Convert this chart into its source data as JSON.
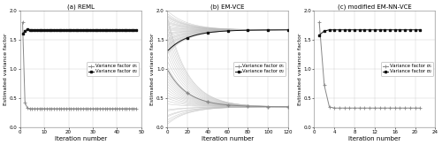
{
  "fig_width": 5.0,
  "fig_height": 1.64,
  "dpi": 100,
  "background_color": "#ffffff",
  "subplots": [
    {
      "title": "(a) REML",
      "xlabel": "Iteration number",
      "ylabel": "Estimated variance factor",
      "xlim": [
        0,
        50
      ],
      "ylim": [
        0,
        2
      ],
      "xticks": [
        0,
        10,
        20,
        30,
        40,
        50
      ],
      "yticks": [
        0,
        0.5,
        1.0,
        1.5,
        2.0
      ],
      "sigma1_x": [
        1,
        2,
        3,
        4,
        5,
        6,
        7,
        8,
        9,
        10,
        11,
        12,
        13,
        14,
        15,
        16,
        17,
        18,
        19,
        20,
        21,
        22,
        23,
        24,
        25,
        26,
        27,
        28,
        29,
        30,
        31,
        32,
        33,
        34,
        35,
        36,
        37,
        38,
        39,
        40,
        41,
        42,
        43,
        44,
        45,
        46,
        47,
        48
      ],
      "sigma1_y": [
        1.8,
        0.42,
        0.33,
        0.32,
        0.32,
        0.32,
        0.32,
        0.32,
        0.32,
        0.32,
        0.32,
        0.32,
        0.32,
        0.32,
        0.32,
        0.32,
        0.32,
        0.32,
        0.32,
        0.32,
        0.32,
        0.32,
        0.32,
        0.32,
        0.32,
        0.32,
        0.32,
        0.32,
        0.32,
        0.32,
        0.32,
        0.32,
        0.32,
        0.32,
        0.32,
        0.32,
        0.32,
        0.32,
        0.32,
        0.32,
        0.32,
        0.32,
        0.32,
        0.32,
        0.32,
        0.32,
        0.32,
        0.32
      ],
      "sigma2_x": [
        1,
        2,
        3,
        4,
        5,
        6,
        7,
        8,
        9,
        10,
        11,
        12,
        13,
        14,
        15,
        16,
        17,
        18,
        19,
        20,
        21,
        22,
        23,
        24,
        25,
        26,
        27,
        28,
        29,
        30,
        31,
        32,
        33,
        34,
        35,
        36,
        37,
        38,
        39,
        40,
        41,
        42,
        43,
        44,
        45,
        46,
        47,
        48
      ],
      "sigma2_y": [
        1.6,
        1.65,
        1.68,
        1.67,
        1.67,
        1.67,
        1.67,
        1.67,
        1.67,
        1.67,
        1.67,
        1.67,
        1.67,
        1.67,
        1.67,
        1.67,
        1.67,
        1.67,
        1.67,
        1.67,
        1.67,
        1.67,
        1.67,
        1.67,
        1.67,
        1.67,
        1.67,
        1.67,
        1.67,
        1.67,
        1.67,
        1.67,
        1.67,
        1.67,
        1.67,
        1.67,
        1.67,
        1.67,
        1.67,
        1.67,
        1.67,
        1.67,
        1.67,
        1.67,
        1.67,
        1.67,
        1.67,
        1.67
      ],
      "legend_label1": "Variance factor σ₁",
      "legend_label2": "Variance factor σ₂"
    },
    {
      "title": "(b) EM-VCE",
      "xlabel": "Iteration number",
      "ylabel": "Estimated variance factor",
      "xlim": [
        0,
        120
      ],
      "ylim": [
        0,
        2
      ],
      "xticks": [
        0,
        20,
        40,
        60,
        80,
        100,
        120
      ],
      "yticks": [
        0,
        0.5,
        1.0,
        1.5,
        2.0
      ],
      "num_gray_lines": 30,
      "sigma1_converge": 0.35,
      "sigma2_converge": 1.67,
      "legend_label1": "Variance factor σ₁",
      "legend_label2": "Variance factor σ₂",
      "gray_starts_sigma1": [
        0.05,
        0.12,
        0.2,
        0.3,
        0.45,
        0.55,
        0.65,
        0.75,
        0.85,
        0.95,
        1.05,
        1.15,
        1.25,
        1.35,
        1.45,
        1.55,
        1.65,
        1.75,
        1.85,
        1.92,
        0.08,
        0.18,
        0.28,
        0.4,
        0.5,
        0.6,
        0.7,
        0.8,
        0.9,
        1.0
      ],
      "gray_starts_sigma2": [
        1.3,
        1.35,
        1.4,
        1.45,
        1.5,
        1.55,
        1.6,
        1.65,
        1.7,
        1.75,
        1.8,
        1.85,
        1.9,
        1.95,
        2.0,
        1.25,
        1.32,
        1.42,
        1.52,
        1.62,
        1.72,
        1.82,
        1.92,
        1.28,
        1.38,
        1.48,
        1.58,
        1.68,
        1.78,
        1.88
      ]
    },
    {
      "title": "(c) modified EM-NN-VCE",
      "xlabel": "Iteration number",
      "ylabel": "Estimated variance factor",
      "xlim": [
        0,
        24
      ],
      "ylim": [
        0,
        2
      ],
      "xticks": [
        0,
        4,
        8,
        12,
        16,
        20,
        24
      ],
      "yticks": [
        0,
        0.5,
        1.0,
        1.5,
        2.0
      ],
      "sigma1_x": [
        1,
        2,
        3,
        4,
        5,
        6,
        7,
        8,
        9,
        10,
        11,
        12,
        13,
        14,
        15,
        16,
        17,
        18,
        19,
        20,
        21
      ],
      "sigma1_y": [
        1.8,
        0.72,
        0.35,
        0.33,
        0.33,
        0.33,
        0.33,
        0.33,
        0.33,
        0.33,
        0.33,
        0.33,
        0.33,
        0.33,
        0.33,
        0.33,
        0.33,
        0.33,
        0.33,
        0.33,
        0.33
      ],
      "sigma2_x": [
        1,
        2,
        3,
        4,
        5,
        6,
        7,
        8,
        9,
        10,
        11,
        12,
        13,
        14,
        15,
        16,
        17,
        18,
        19,
        20,
        21
      ],
      "sigma2_y": [
        1.58,
        1.65,
        1.67,
        1.67,
        1.67,
        1.67,
        1.67,
        1.67,
        1.67,
        1.67,
        1.67,
        1.67,
        1.67,
        1.67,
        1.67,
        1.67,
        1.67,
        1.67,
        1.67,
        1.67,
        1.67
      ],
      "legend_label1": "Variance factor σ₁",
      "legend_label2": "Variance factor σ₂"
    }
  ],
  "sigma1_color": "#888888",
  "sigma2_color": "#111111",
  "sigma1_marker": "P",
  "sigma2_marker": "s",
  "marker_size": 1.8,
  "line_width": 0.7,
  "gray_line_color": "#bbbbbb",
  "grid_color": "#cccccc",
  "font_size": 5,
  "title_font_size": 5,
  "ylabel_font_size": 4.5,
  "legend_font_size": 3.8,
  "tick_font_size": 4.0
}
